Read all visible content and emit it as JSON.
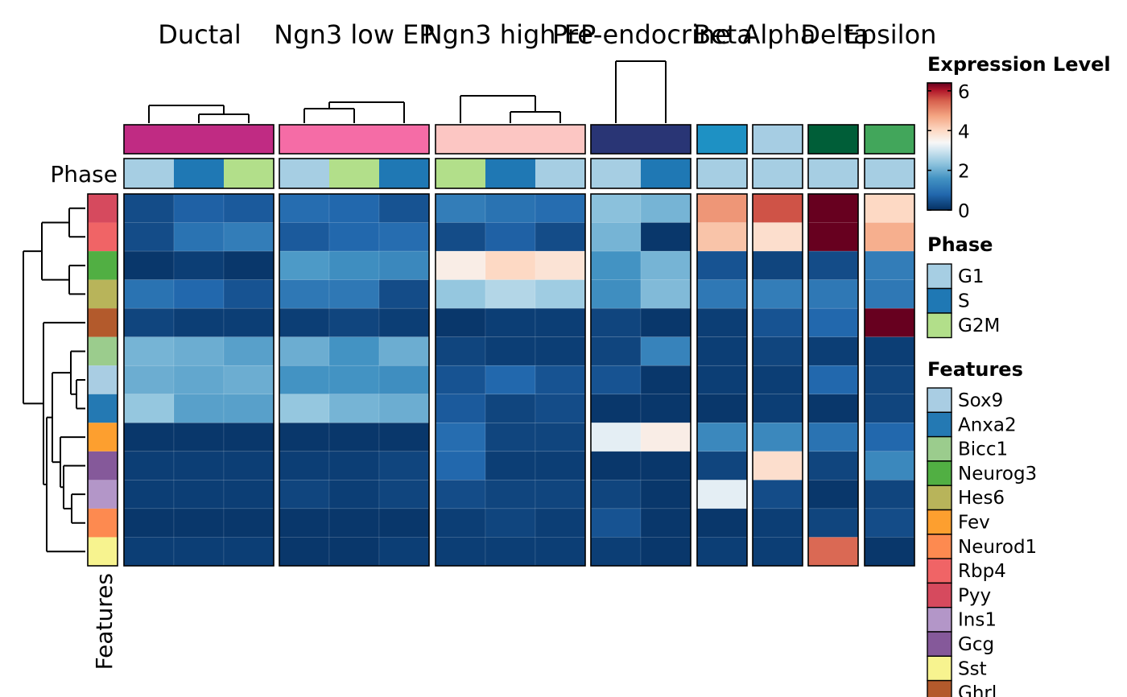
{
  "chart_data": {
    "type": "heatmap",
    "groups": [
      {
        "name": "Ductal",
        "color": "#C02B83",
        "phases": [
          "G1",
          "S",
          "G2M"
        ]
      },
      {
        "name": "Ngn3 low EP",
        "color": "#F56CA6",
        "phases": [
          "G1",
          "G2M",
          "S"
        ]
      },
      {
        "name": "Ngn3 high EP",
        "color": "#FCC6C3",
        "phases": [
          "G2M",
          "S",
          "G1"
        ]
      },
      {
        "name": "Pre-endocrine",
        "color": "#293575",
        "phases": [
          "G1",
          "S"
        ]
      },
      {
        "name": "Beta",
        "color": "#1E91C4",
        "phases": [
          "G1"
        ]
      },
      {
        "name": "Alpha",
        "color": "#A6CDE3",
        "phases": [
          "G1"
        ]
      },
      {
        "name": "Delta",
        "color": "#005E38",
        "phases": [
          "G1"
        ]
      },
      {
        "name": "Epsilon",
        "color": "#42A65B",
        "phases": [
          "G1"
        ]
      }
    ],
    "features": [
      "Pyy",
      "Rbp4",
      "Neurog3",
      "Hes6",
      "Ghrl",
      "Bicc1",
      "Sox9",
      "Anxa2",
      "Fev",
      "Gcg",
      "Ins1",
      "Neurod1",
      "Sst"
    ],
    "values": [
      [
        0.4,
        0.7,
        0.6,
        0.9,
        0.8,
        0.5,
        1.2,
        1.0,
        0.9,
        2.3,
        2.1,
        4.9,
        5.6,
        6.4,
        4.0
      ],
      [
        0.4,
        1.0,
        1.2,
        0.6,
        0.8,
        0.9,
        0.4,
        0.7,
        0.4,
        2.1,
        0.1,
        4.3,
        3.9,
        6.4,
        4.6
      ],
      [
        0.1,
        0.2,
        0.1,
        1.7,
        1.5,
        1.4,
        3.6,
        4.0,
        3.8,
        1.6,
        2.1,
        0.5,
        0.3,
        0.4,
        1.2
      ],
      [
        1.0,
        0.8,
        0.5,
        1.1,
        1.1,
        0.4,
        2.4,
        2.7,
        2.5,
        1.5,
        2.2,
        1.1,
        1.2,
        1.1,
        1.1
      ],
      [
        0.3,
        0.2,
        0.2,
        0.2,
        0.3,
        0.2,
        0.1,
        0.2,
        0.2,
        0.3,
        0.1,
        0.2,
        0.5,
        0.8,
        6.4
      ],
      [
        2.1,
        2.0,
        1.8,
        2.0,
        1.6,
        2.0,
        0.3,
        0.2,
        0.2,
        0.3,
        1.3,
        0.2,
        0.3,
        0.2,
        0.2
      ],
      [
        2.0,
        1.9,
        2.0,
        1.6,
        1.6,
        1.5,
        0.5,
        0.8,
        0.5,
        0.5,
        0.1,
        0.2,
        0.2,
        0.8,
        0.3
      ],
      [
        2.4,
        1.8,
        1.8,
        2.4,
        2.1,
        2.0,
        0.6,
        0.3,
        0.4,
        0.1,
        0.1,
        0.1,
        0.2,
        0.1,
        0.3
      ],
      [
        0.1,
        0.1,
        0.1,
        0.1,
        0.1,
        0.1,
        0.9,
        0.3,
        0.3,
        3.2,
        3.6,
        1.4,
        1.4,
        1.0,
        0.8
      ],
      [
        0.2,
        0.2,
        0.2,
        0.2,
        0.2,
        0.3,
        0.8,
        0.2,
        0.2,
        0.1,
        0.1,
        0.3,
        3.9,
        0.3,
        1.4
      ],
      [
        0.2,
        0.2,
        0.2,
        0.3,
        0.2,
        0.3,
        0.4,
        0.3,
        0.3,
        0.3,
        0.1,
        3.2,
        0.4,
        0.1,
        0.3
      ],
      [
        0.1,
        0.1,
        0.1,
        0.1,
        0.1,
        0.1,
        0.2,
        0.3,
        0.2,
        0.5,
        0.1,
        0.1,
        0.2,
        0.3,
        0.4
      ],
      [
        0.2,
        0.2,
        0.2,
        0.1,
        0.1,
        0.2,
        0.2,
        0.2,
        0.2,
        0.2,
        0.1,
        0.2,
        0.2,
        5.4,
        0.1
      ]
    ],
    "feature_colors": {
      "Pyy": "#D64A5E",
      "Rbp4": "#F06466",
      "Neurog3": "#51AF43",
      "Hes6": "#B8B45A",
      "Ghrl": "#B35A2C",
      "Bicc1": "#9BCC8D",
      "Sox9": "#A9CDE3",
      "Anxa2": "#2479B3",
      "Fev": "#FD9F2F",
      "Gcg": "#85599A",
      "Ins1": "#B396C8",
      "Neurod1": "#FD8A50",
      "Sst": "#F7F38F"
    },
    "phase_colors": {
      "G1": "#A6CEE3",
      "S": "#1F78B4",
      "G2M": "#B2DF8A"
    },
    "color_scale": {
      "min": 0,
      "max": 6.4,
      "ticks": [
        0,
        2,
        4,
        6
      ]
    },
    "legend": {
      "expression_title": "Expression Level",
      "phase_title": "Phase",
      "phase_items": [
        "G1",
        "S",
        "G2M"
      ],
      "features_title": "Features",
      "feature_items": [
        "Sox9",
        "Anxa2",
        "Bicc1",
        "Neurog3",
        "Hes6",
        "Fev",
        "Neurod1",
        "Rbp4",
        "Pyy",
        "Ins1",
        "Gcg",
        "Sst",
        "Ghrl"
      ]
    },
    "row_annotation_label": "Phase",
    "column_annotation_label": "Features"
  }
}
